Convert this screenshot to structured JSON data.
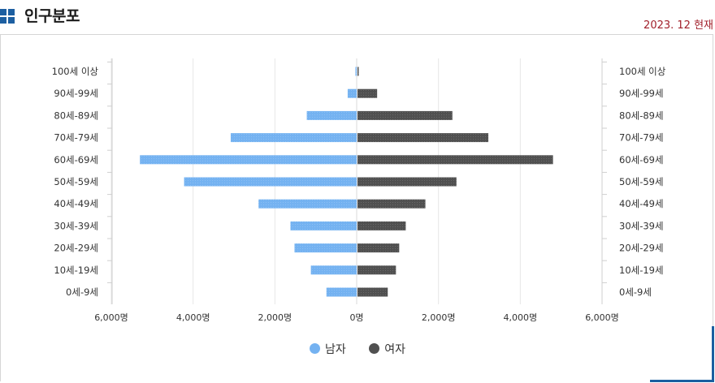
{
  "header": {
    "title": "인구분포",
    "as_of": "2023. 12 현재"
  },
  "colors": {
    "icon": "#1d5fa1",
    "male": "#74b2f1",
    "female": "#505050",
    "as_of": "#a11f2a"
  },
  "chart_data": {
    "type": "bar",
    "orientation": "horizontal-pyramid",
    "categories": [
      "100세 이상",
      "90세-99세",
      "80세-89세",
      "70세-79세",
      "60세-69세",
      "50세-59세",
      "40세-49세",
      "30세-39세",
      "20세-29세",
      "10세-19세",
      "0세-9세"
    ],
    "series": [
      {
        "name": "남자",
        "values": [
          20,
          220,
          1220,
          3080,
          5300,
          4220,
          2400,
          1620,
          1520,
          1120,
          740
        ]
      },
      {
        "name": "여자",
        "values": [
          30,
          480,
          2320,
          3200,
          4780,
          2420,
          1660,
          1180,
          1020,
          940,
          740
        ]
      }
    ],
    "xlim": [
      -6000,
      6000
    ],
    "x_tick_labels": [
      "6,000명",
      "4,000명",
      "2,000명",
      "0명",
      "2,000명",
      "4,000명",
      "6,000명"
    ],
    "grid": "vertical",
    "legend_position": "bottom"
  }
}
